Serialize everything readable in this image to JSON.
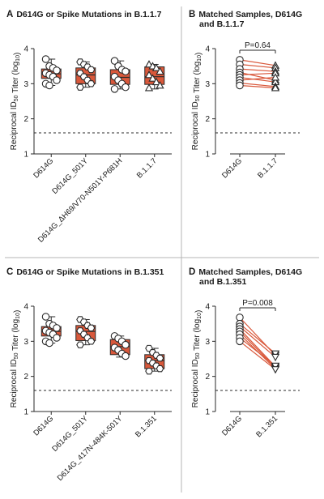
{
  "panels": [
    {
      "letter": "A",
      "title": "D614G or Spike Mutations in B.1.1.7",
      "type": "box",
      "ylabel_main": "Reciprocal ID",
      "ylabel_sub": "50",
      "ylabel_tail": " Titer (log",
      "ylabel_sub2": "10",
      "ylabel_end": ")",
      "ylim": [
        1,
        4
      ],
      "yticks": [
        "1",
        "2",
        "3",
        "4"
      ],
      "threshold": 1.6,
      "categories": [
        "D614G",
        "D614G_501Y",
        "D614G_ΔH69/V70-N501Y-P681H",
        "B.1.1.7"
      ],
      "boxes": [
        {
          "q1": 3.15,
          "median": 3.28,
          "q3": 3.42,
          "min": 2.95,
          "max": 3.7,
          "marker": "circle",
          "points": [
            3.7,
            3.5,
            3.45,
            3.38,
            3.3,
            3.25,
            3.2,
            3.1,
            3.0,
            2.95
          ]
        },
        {
          "q1": 3.0,
          "median": 3.25,
          "q3": 3.45,
          "min": 2.9,
          "max": 3.62,
          "marker": "hexagon",
          "points": [
            3.62,
            3.55,
            3.48,
            3.4,
            3.3,
            3.2,
            3.1,
            3.0,
            2.9
          ]
        },
        {
          "q1": 2.98,
          "median": 3.18,
          "q3": 3.4,
          "min": 2.85,
          "max": 3.65,
          "marker": "circle",
          "points": [
            3.65,
            3.5,
            3.4,
            3.35,
            3.2,
            3.1,
            3.0,
            2.9,
            2.85
          ]
        },
        {
          "q1": 2.98,
          "median": 3.2,
          "q3": 3.48,
          "min": 2.85,
          "max": 3.55,
          "marker": "triangle-up",
          "points": [
            3.55,
            3.5,
            3.45,
            3.35,
            3.25,
            3.15,
            3.05,
            2.95,
            2.88
          ]
        }
      ]
    },
    {
      "letter": "B",
      "title": "Matched Samples, D614G",
      "title2": "and B.1.1.7",
      "type": "paired",
      "ylim": [
        1,
        4
      ],
      "yticks": [
        "1",
        "2",
        "3",
        "4"
      ],
      "threshold": 1.6,
      "categories": [
        "D614G",
        "B.1.1.7"
      ],
      "pvalue": "P=0.64",
      "left_marker": "circle",
      "right_marker": "triangle-up",
      "pairs": [
        [
          3.68,
          3.52
        ],
        [
          3.55,
          3.45
        ],
        [
          3.42,
          3.35
        ],
        [
          3.32,
          3.1
        ],
        [
          3.25,
          3.3
        ],
        [
          3.18,
          3.05
        ],
        [
          3.1,
          3.18
        ],
        [
          3.02,
          2.92
        ],
        [
          2.95,
          2.88
        ]
      ]
    },
    {
      "letter": "C",
      "title": "D614G or Spike Mutations in B.1.351",
      "type": "box",
      "ylim": [
        1,
        4
      ],
      "yticks": [
        "1",
        "2",
        "3",
        "4"
      ],
      "threshold": 1.6,
      "categories": [
        "D614G",
        "D614G_501Y",
        "D614G_417N-484K-501Y",
        "B.1.351"
      ],
      "boxes": [
        {
          "q1": 3.15,
          "median": 3.28,
          "q3": 3.42,
          "min": 2.95,
          "max": 3.7,
          "marker": "circle",
          "points": [
            3.7,
            3.5,
            3.45,
            3.38,
            3.3,
            3.25,
            3.2,
            3.1,
            3.0,
            2.95
          ]
        },
        {
          "q1": 3.02,
          "median": 3.28,
          "q3": 3.45,
          "min": 2.9,
          "max": 3.62,
          "marker": "hexagon",
          "points": [
            3.62,
            3.55,
            3.45,
            3.38,
            3.3,
            3.2,
            3.1,
            3.0,
            2.9
          ]
        },
        {
          "q1": 2.62,
          "median": 2.85,
          "q3": 3.05,
          "min": 2.55,
          "max": 3.15,
          "marker": "circle",
          "points": [
            3.15,
            3.08,
            3.0,
            2.9,
            2.82,
            2.75,
            2.65,
            2.58
          ]
        },
        {
          "q1": 2.22,
          "median": 2.45,
          "q3": 2.62,
          "min": 2.15,
          "max": 2.8,
          "marker": "hexagon",
          "points": [
            2.8,
            2.68,
            2.6,
            2.52,
            2.45,
            2.38,
            2.3,
            2.22,
            2.15
          ]
        }
      ]
    },
    {
      "letter": "D",
      "title": "Matched Samples, D614G",
      "title2": "and B.1.351",
      "type": "paired",
      "ylim": [
        1,
        4
      ],
      "yticks": [
        "1",
        "2",
        "3",
        "4"
      ],
      "threshold": 1.6,
      "categories": [
        "D614G",
        "B.1.351"
      ],
      "pvalue": "P=0.008",
      "left_marker": "circle",
      "right_marker": "triangle-down",
      "pairs": [
        [
          3.68,
          2.6
        ],
        [
          3.5,
          2.65
        ],
        [
          3.42,
          2.55
        ],
        [
          3.35,
          2.28
        ],
        [
          3.28,
          2.25
        ],
        [
          3.2,
          2.22
        ],
        [
          3.1,
          2.3
        ],
        [
          3.0,
          2.2
        ]
      ]
    }
  ],
  "colors": {
    "box_fill": "#d9583b",
    "line": "#2a2a2a",
    "pair_line": "#d9583b",
    "divider": "#b4b4b4"
  }
}
